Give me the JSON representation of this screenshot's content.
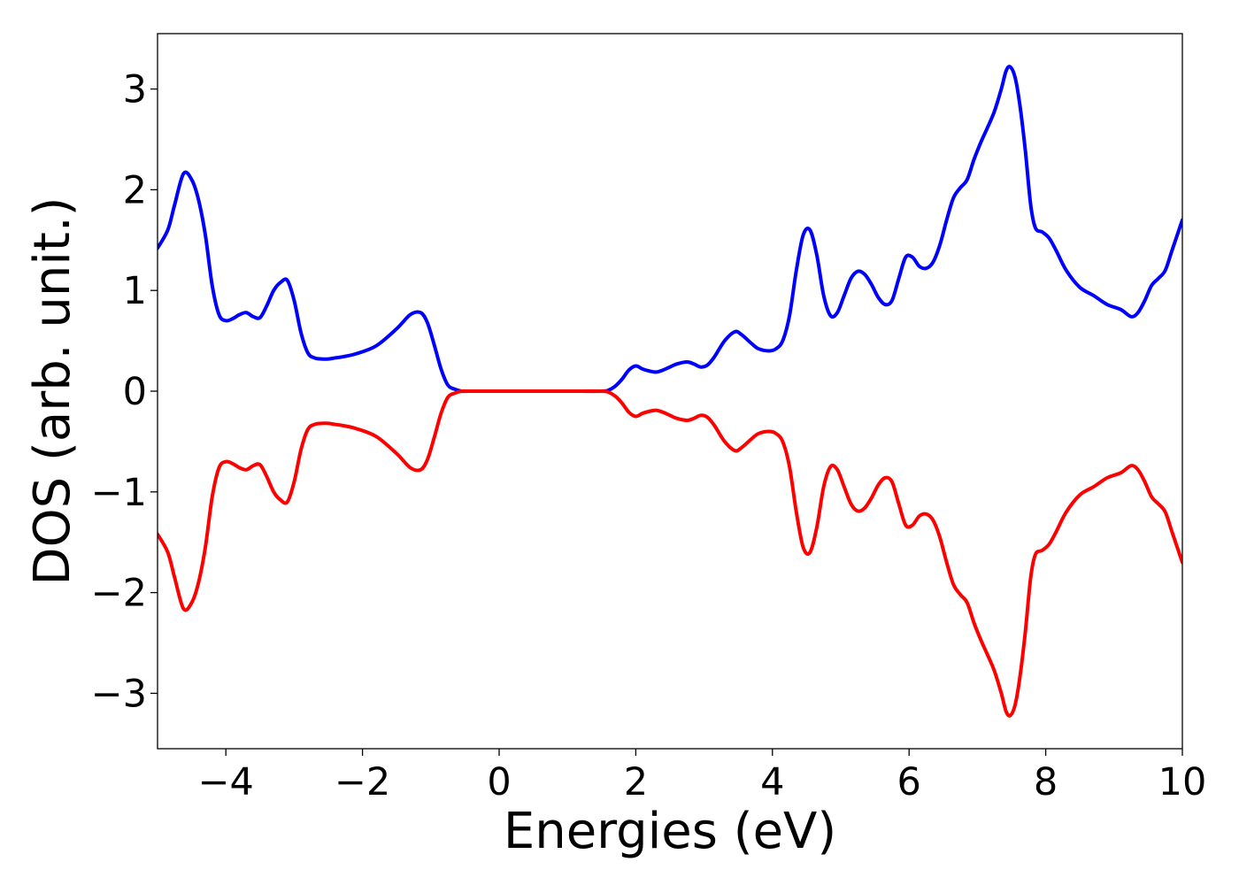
{
  "chart_data": {
    "type": "line",
    "title": "",
    "xlabel": "Energies (eV)",
    "ylabel": "DOS (arb. unit.)",
    "xlim": [
      -5,
      10
    ],
    "ylim": [
      -3.55,
      3.55
    ],
    "xticks": [
      -4,
      -2,
      0,
      2,
      4,
      6,
      8,
      10
    ],
    "xtick_labels": [
      "−4",
      "−2",
      "0",
      "2",
      "4",
      "6",
      "8",
      "10"
    ],
    "yticks": [
      -3,
      -2,
      -1,
      0,
      1,
      2,
      3
    ],
    "ytick_labels": [
      "−3",
      "−2",
      "−1",
      "0",
      "1",
      "2",
      "3"
    ],
    "grid": false,
    "legend": "none",
    "series": [
      {
        "color": "#0000ff",
        "x": [
          -5.0,
          -4.85,
          -4.75,
          -4.62,
          -4.5,
          -4.4,
          -4.3,
          -4.2,
          -4.1,
          -4.0,
          -3.9,
          -3.8,
          -3.7,
          -3.6,
          -3.5,
          -3.4,
          -3.3,
          -3.2,
          -3.1,
          -3.0,
          -2.9,
          -2.8,
          -2.7,
          -2.6,
          -2.5,
          -2.4,
          -2.3,
          -2.1,
          -1.8,
          -1.5,
          -1.3,
          -1.15,
          -1.05,
          -0.95,
          -0.85,
          -0.75,
          -0.65,
          -0.55,
          -0.45,
          0.0,
          0.5,
          1.0,
          1.5,
          1.6,
          1.7,
          1.8,
          1.9,
          2.0,
          2.1,
          2.2,
          2.3,
          2.4,
          2.5,
          2.6,
          2.75,
          2.85,
          2.95,
          3.05,
          3.15,
          3.3,
          3.45,
          3.55,
          3.7,
          3.8,
          3.95,
          4.05,
          4.15,
          4.25,
          4.35,
          4.45,
          4.55,
          4.65,
          4.75,
          4.85,
          4.95,
          5.05,
          5.15,
          5.25,
          5.35,
          5.45,
          5.55,
          5.65,
          5.75,
          5.85,
          5.95,
          6.05,
          6.15,
          6.25,
          6.35,
          6.45,
          6.55,
          6.65,
          6.75,
          6.85,
          6.95,
          7.05,
          7.15,
          7.25,
          7.35,
          7.42,
          7.48,
          7.55,
          7.62,
          7.7,
          7.78,
          7.85,
          7.95,
          8.05,
          8.15,
          8.3,
          8.5,
          8.7,
          8.9,
          9.1,
          9.25,
          9.35,
          9.45,
          9.55,
          9.65,
          9.75,
          9.85,
          10.0
        ],
        "y": [
          1.42,
          1.6,
          1.85,
          2.16,
          2.1,
          1.9,
          1.55,
          1.05,
          0.76,
          0.7,
          0.72,
          0.76,
          0.78,
          0.74,
          0.73,
          0.85,
          1.0,
          1.08,
          1.1,
          0.9,
          0.58,
          0.38,
          0.33,
          0.32,
          0.32,
          0.33,
          0.34,
          0.37,
          0.45,
          0.62,
          0.76,
          0.78,
          0.68,
          0.46,
          0.22,
          0.06,
          0.02,
          0.0,
          0.0,
          0.0,
          0.0,
          0.0,
          0.0,
          0.01,
          0.05,
          0.12,
          0.21,
          0.25,
          0.22,
          0.2,
          0.19,
          0.21,
          0.24,
          0.27,
          0.29,
          0.27,
          0.24,
          0.26,
          0.34,
          0.5,
          0.59,
          0.56,
          0.47,
          0.42,
          0.4,
          0.42,
          0.5,
          0.75,
          1.2,
          1.55,
          1.6,
          1.35,
          0.95,
          0.75,
          0.78,
          0.95,
          1.12,
          1.19,
          1.16,
          1.06,
          0.93,
          0.86,
          0.9,
          1.12,
          1.33,
          1.33,
          1.24,
          1.22,
          1.28,
          1.45,
          1.7,
          1.92,
          2.02,
          2.1,
          2.3,
          2.47,
          2.62,
          2.78,
          3.0,
          3.18,
          3.22,
          3.12,
          2.85,
          2.4,
          1.85,
          1.62,
          1.58,
          1.52,
          1.4,
          1.2,
          1.03,
          0.95,
          0.86,
          0.81,
          0.74,
          0.78,
          0.9,
          1.05,
          1.12,
          1.2,
          1.4,
          1.7
        ]
      },
      {
        "color": "#ff0000",
        "x": [
          -5.0,
          -4.85,
          -4.75,
          -4.62,
          -4.5,
          -4.4,
          -4.3,
          -4.2,
          -4.1,
          -4.0,
          -3.9,
          -3.8,
          -3.7,
          -3.6,
          -3.5,
          -3.4,
          -3.3,
          -3.2,
          -3.1,
          -3.0,
          -2.9,
          -2.8,
          -2.7,
          -2.6,
          -2.5,
          -2.4,
          -2.3,
          -2.1,
          -1.8,
          -1.5,
          -1.3,
          -1.15,
          -1.05,
          -0.95,
          -0.85,
          -0.75,
          -0.65,
          -0.55,
          -0.45,
          0.0,
          0.5,
          1.0,
          1.5,
          1.6,
          1.7,
          1.8,
          1.9,
          2.0,
          2.1,
          2.2,
          2.3,
          2.4,
          2.5,
          2.6,
          2.75,
          2.85,
          2.95,
          3.05,
          3.15,
          3.3,
          3.45,
          3.55,
          3.7,
          3.8,
          3.95,
          4.05,
          4.15,
          4.25,
          4.35,
          4.45,
          4.55,
          4.65,
          4.75,
          4.85,
          4.95,
          5.05,
          5.15,
          5.25,
          5.35,
          5.45,
          5.55,
          5.65,
          5.75,
          5.85,
          5.95,
          6.05,
          6.15,
          6.25,
          6.35,
          6.45,
          6.55,
          6.65,
          6.75,
          6.85,
          6.95,
          7.05,
          7.15,
          7.25,
          7.35,
          7.42,
          7.48,
          7.55,
          7.62,
          7.7,
          7.78,
          7.85,
          7.95,
          8.05,
          8.15,
          8.3,
          8.5,
          8.7,
          8.9,
          9.1,
          9.25,
          9.35,
          9.45,
          9.55,
          9.65,
          9.75,
          9.85,
          10.0
        ],
        "y": [
          -1.42,
          -1.6,
          -1.85,
          -2.16,
          -2.1,
          -1.9,
          -1.55,
          -1.05,
          -0.76,
          -0.7,
          -0.72,
          -0.76,
          -0.78,
          -0.74,
          -0.73,
          -0.85,
          -1.0,
          -1.08,
          -1.1,
          -0.9,
          -0.58,
          -0.38,
          -0.33,
          -0.32,
          -0.32,
          -0.33,
          -0.34,
          -0.37,
          -0.45,
          -0.62,
          -0.76,
          -0.78,
          -0.68,
          -0.46,
          -0.22,
          -0.06,
          -0.02,
          0.0,
          0.0,
          0.0,
          0.0,
          0.0,
          0.0,
          -0.01,
          -0.05,
          -0.12,
          -0.21,
          -0.25,
          -0.22,
          -0.2,
          -0.19,
          -0.21,
          -0.24,
          -0.27,
          -0.29,
          -0.27,
          -0.24,
          -0.26,
          -0.34,
          -0.5,
          -0.59,
          -0.56,
          -0.47,
          -0.42,
          -0.4,
          -0.42,
          -0.5,
          -0.75,
          -1.2,
          -1.55,
          -1.6,
          -1.35,
          -0.95,
          -0.75,
          -0.78,
          -0.95,
          -1.12,
          -1.19,
          -1.16,
          -1.06,
          -0.93,
          -0.86,
          -0.9,
          -1.12,
          -1.33,
          -1.33,
          -1.24,
          -1.22,
          -1.28,
          -1.45,
          -1.7,
          -1.92,
          -2.02,
          -2.1,
          -2.3,
          -2.47,
          -2.62,
          -2.78,
          -3.0,
          -3.18,
          -3.22,
          -3.12,
          -2.85,
          -2.4,
          -1.85,
          -1.62,
          -1.58,
          -1.52,
          -1.4,
          -1.2,
          -1.03,
          -0.95,
          -0.86,
          -0.81,
          -0.74,
          -0.78,
          -0.9,
          -1.05,
          -1.12,
          -1.2,
          -1.4,
          -1.7
        ]
      }
    ]
  }
}
